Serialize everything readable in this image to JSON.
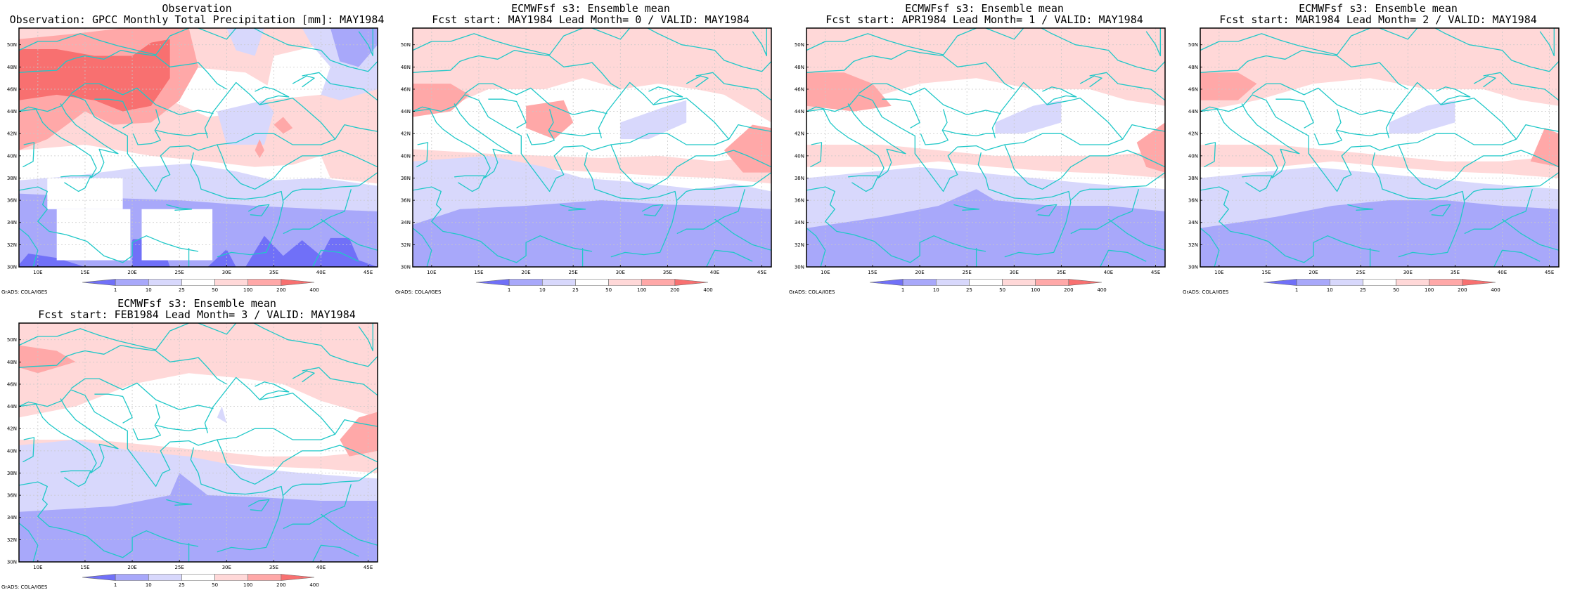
{
  "panels": [
    {
      "line1": "Observation",
      "line2": "Observation: GPCC Monthly Total Precipitation [mm]: MAY1984",
      "scene": "obs"
    },
    {
      "line1": "ECMWFsf s3: Ensemble mean",
      "line2": "Fcst start: MAY1984  Lead Month= 0 / VALID: MAY1984",
      "scene": "f0"
    },
    {
      "line1": "ECMWFsf s3: Ensemble mean",
      "line2": "Fcst start: APR1984  Lead Month= 1 / VALID: MAY1984",
      "scene": "f1"
    },
    {
      "line1": "ECMWFsf s3: Ensemble mean",
      "line2": "Fcst start: MAR1984  Lead Month= 2 / VALID: MAY1984",
      "scene": "f2"
    },
    {
      "line1": "ECMWFsf s3: Ensemble mean",
      "line2": "Fcst start: FEB1984  Lead Month= 3 / VALID: MAY1984",
      "scene": "f3"
    }
  ],
  "lat_labels": [
    "50N",
    "48N",
    "46N",
    "44N",
    "42N",
    "40N",
    "38N",
    "36N",
    "34N",
    "32N",
    "30N"
  ],
  "lon_labels": [
    "10E",
    "15E",
    "20E",
    "25E",
    "30E",
    "35E",
    "40E",
    "45E"
  ],
  "colorbar": {
    "labels": [
      "1",
      "10",
      "25",
      "50",
      "100",
      "200",
      "400"
    ],
    "colors": [
      "#7070f8",
      "#a8a8fa",
      "#d8d8fc",
      "#ffffff",
      "#ffd8d8",
      "#ffa8a8",
      "#f87070"
    ]
  },
  "credit": "GrADS: COLA/IGES",
  "style": {
    "coast": "#20c8c8",
    "grid": "#c8c8c8",
    "frame": "#000000"
  }
}
